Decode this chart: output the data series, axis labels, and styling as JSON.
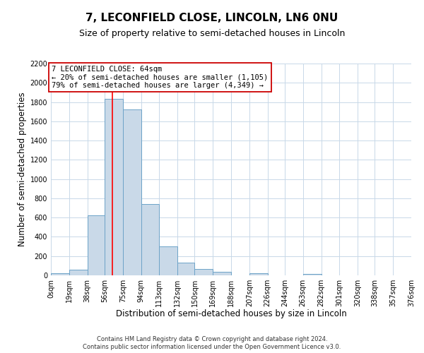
{
  "title": "7, LECONFIELD CLOSE, LINCOLN, LN6 0NU",
  "subtitle": "Size of property relative to semi-detached houses in Lincoln",
  "xlabel": "Distribution of semi-detached houses by size in Lincoln",
  "ylabel": "Number of semi-detached properties",
  "bin_edges": [
    0,
    19,
    38,
    56,
    75,
    94,
    113,
    132,
    150,
    169,
    188,
    207,
    226,
    244,
    263,
    282,
    301,
    320,
    338,
    357,
    376
  ],
  "bin_heights": [
    20,
    60,
    625,
    1830,
    1720,
    740,
    300,
    130,
    65,
    40,
    0,
    25,
    0,
    0,
    15,
    0,
    0,
    0,
    0,
    0
  ],
  "tick_labels": [
    "0sqm",
    "19sqm",
    "38sqm",
    "56sqm",
    "75sqm",
    "94sqm",
    "113sqm",
    "132sqm",
    "150sqm",
    "169sqm",
    "188sqm",
    "207sqm",
    "226sqm",
    "244sqm",
    "263sqm",
    "282sqm",
    "301sqm",
    "320sqm",
    "338sqm",
    "357sqm",
    "376sqm"
  ],
  "bar_fill": "#c9d9e8",
  "bar_edge": "#6da3c8",
  "red_line_x": 64,
  "annotation_line0": "7 LECONFIELD CLOSE: 64sqm",
  "annotation_line1": "← 20% of semi-detached houses are smaller (1,105)",
  "annotation_line2": "79% of semi-detached houses are larger (4,349) →",
  "annotation_box_edge": "#cc0000",
  "ylim": [
    0,
    2200
  ],
  "yticks": [
    0,
    200,
    400,
    600,
    800,
    1000,
    1200,
    1400,
    1600,
    1800,
    2000,
    2200
  ],
  "footer1": "Contains HM Land Registry data © Crown copyright and database right 2024.",
  "footer2": "Contains public sector information licensed under the Open Government Licence v3.0.",
  "bg_color": "#ffffff",
  "grid_color": "#c8d8e8",
  "title_fontsize": 11,
  "subtitle_fontsize": 9,
  "axis_label_fontsize": 8.5,
  "tick_fontsize": 7,
  "footer_fontsize": 6,
  "ann_fontsize": 7.5
}
